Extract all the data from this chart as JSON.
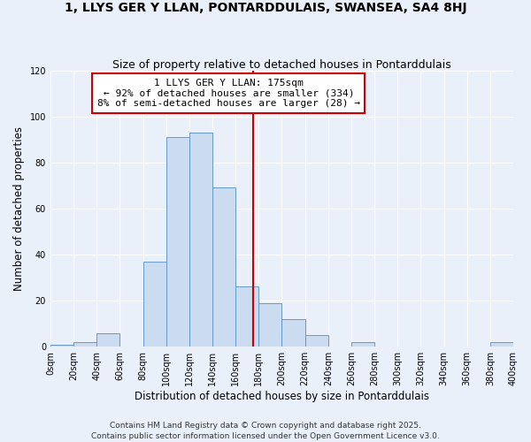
{
  "title": "1, LLYS GER Y LLAN, PONTARDDULAIS, SWANSEA, SA4 8HJ",
  "subtitle": "Size of property relative to detached houses in Pontarddulais",
  "xlabel": "Distribution of detached houses by size in Pontarddulais",
  "ylabel": "Number of detached properties",
  "bin_edges": [
    0,
    20,
    40,
    60,
    80,
    100,
    120,
    140,
    160,
    180,
    200,
    220,
    240,
    260,
    280,
    300,
    320,
    340,
    360,
    380,
    400
  ],
  "bar_heights": [
    1,
    2,
    6,
    0,
    37,
    91,
    93,
    69,
    26,
    19,
    12,
    5,
    0,
    2,
    0,
    0,
    0,
    0,
    0,
    2
  ],
  "bar_color": "#ccdcf0",
  "bar_edge_color": "#6699cc",
  "vline_x": 175,
  "vline_color": "#cc0000",
  "annotation_line1": "1 LLYS GER Y LLAN: 175sqm",
  "annotation_line2": "← 92% of detached houses are smaller (334)",
  "annotation_line3": "8% of semi-detached houses are larger (28) →",
  "annotation_box_edge_color": "#cc0000",
  "ylim": [
    0,
    120
  ],
  "xlim": [
    0,
    400
  ],
  "tick_positions": [
    0,
    20,
    40,
    60,
    80,
    100,
    120,
    140,
    160,
    180,
    200,
    220,
    240,
    260,
    280,
    300,
    320,
    340,
    360,
    380,
    400
  ],
  "tick_labels": [
    "0sqm",
    "20sqm",
    "40sqm",
    "60sqm",
    "80sqm",
    "100sqm",
    "120sqm",
    "140sqm",
    "160sqm",
    "180sqm",
    "200sqm",
    "220sqm",
    "240sqm",
    "260sqm",
    "280sqm",
    "300sqm",
    "320sqm",
    "340sqm",
    "360sqm",
    "380sqm",
    "400sqm"
  ],
  "ytick_positions": [
    0,
    20,
    40,
    60,
    80,
    100,
    120
  ],
  "background_color": "#eaf0fa",
  "grid_color": "#ffffff",
  "footer_line1": "Contains HM Land Registry data © Crown copyright and database right 2025.",
  "footer_line2": "Contains public sector information licensed under the Open Government Licence v3.0.",
  "title_fontsize": 10,
  "subtitle_fontsize": 9,
  "axis_label_fontsize": 8.5,
  "tick_fontsize": 7,
  "annotation_fontsize": 8,
  "footer_fontsize": 6.5
}
